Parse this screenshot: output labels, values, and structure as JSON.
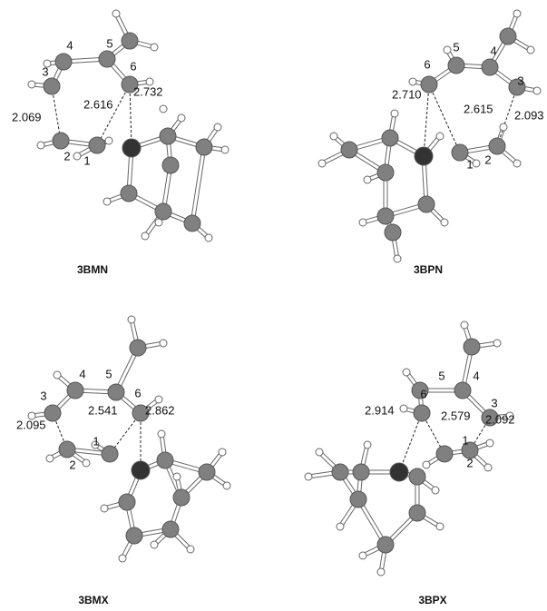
{
  "panels": [
    {
      "label": "3BMN",
      "atom_numbers": [
        "3",
        "4",
        "5",
        "6",
        "2",
        "1"
      ],
      "distances": [
        "2.069",
        "2.616",
        "2.732"
      ]
    },
    {
      "label": "3BPN",
      "atom_numbers": [
        "6",
        "5",
        "4",
        "3",
        "1",
        "2"
      ],
      "distances": [
        "2.710",
        "2.615",
        "2.093"
      ]
    },
    {
      "label": "3BMX",
      "atom_numbers": [
        "3",
        "4",
        "5",
        "6",
        "2",
        "1"
      ],
      "distances": [
        "2.095",
        "2.541",
        "2.862"
      ]
    },
    {
      "label": "3BPX",
      "atom_numbers": [
        "6",
        "5",
        "4",
        "3",
        "1",
        "2"
      ],
      "distances": [
        "2.914",
        "2.579",
        "2.092"
      ]
    }
  ]
}
